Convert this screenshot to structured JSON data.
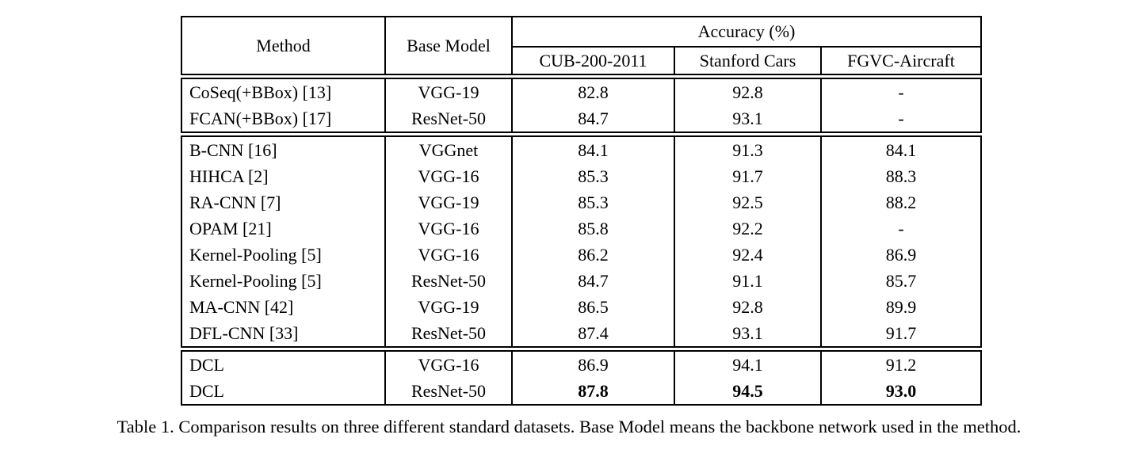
{
  "table": {
    "headers": {
      "method": "Method",
      "base_model": "Base Model",
      "accuracy_group": "Accuracy (%)",
      "datasets": [
        "CUB-200-2011",
        "Stanford Cars",
        "FGVC-Aircraft"
      ]
    },
    "groups": [
      {
        "rows": [
          {
            "method": "CoSeq(+BBox) [13]",
            "base_model": "VGG-19",
            "values": [
              "82.8",
              "92.8",
              "-"
            ],
            "bold_values": false
          },
          {
            "method": "FCAN(+BBox) [17]",
            "base_model": "ResNet-50",
            "values": [
              "84.7",
              "93.1",
              "-"
            ],
            "bold_values": false
          }
        ]
      },
      {
        "rows": [
          {
            "method": "B-CNN [16]",
            "base_model": "VGGnet",
            "values": [
              "84.1",
              "91.3",
              "84.1"
            ],
            "bold_values": false
          },
          {
            "method": "HIHCA [2]",
            "base_model": "VGG-16",
            "values": [
              "85.3",
              "91.7",
              "88.3"
            ],
            "bold_values": false
          },
          {
            "method": "RA-CNN [7]",
            "base_model": "VGG-19",
            "values": [
              "85.3",
              "92.5",
              "88.2"
            ],
            "bold_values": false
          },
          {
            "method": "OPAM [21]",
            "base_model": "VGG-16",
            "values": [
              "85.8",
              "92.2",
              "-"
            ],
            "bold_values": false
          },
          {
            "method": "Kernel-Pooling [5]",
            "base_model": "VGG-16",
            "values": [
              "86.2",
              "92.4",
              "86.9"
            ],
            "bold_values": false
          },
          {
            "method": "Kernel-Pooling [5]",
            "base_model": "ResNet-50",
            "values": [
              "84.7",
              "91.1",
              "85.7"
            ],
            "bold_values": false
          },
          {
            "method": "MA-CNN [42]",
            "base_model": "VGG-19",
            "values": [
              "86.5",
              "92.8",
              "89.9"
            ],
            "bold_values": false
          },
          {
            "method": "DFL-CNN [33]",
            "base_model": "ResNet-50",
            "values": [
              "87.4",
              "93.1",
              "91.7"
            ],
            "bold_values": false
          }
        ]
      },
      {
        "rows": [
          {
            "method": "DCL",
            "base_model": "VGG-16",
            "values": [
              "86.9",
              "94.1",
              "91.2"
            ],
            "bold_values": false
          },
          {
            "method": "DCL",
            "base_model": "ResNet-50",
            "values": [
              "87.8",
              "94.5",
              "93.0"
            ],
            "bold_values": true
          }
        ]
      }
    ],
    "caption": "Table 1. Comparison results on three different standard datasets. Base Model means the backbone network used in the method."
  }
}
